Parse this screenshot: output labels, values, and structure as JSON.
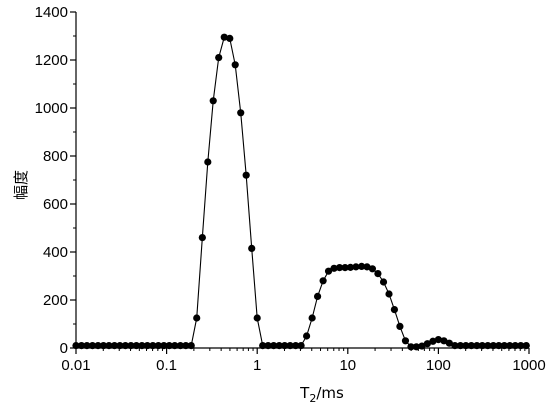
{
  "chart_data": {
    "type": "scatter",
    "title": "",
    "xlabel": "T",
    "xlabel_sub": "2",
    "xlabel_unit": "/ms",
    "ylabel": "幅度",
    "xscale": "log",
    "xlim": [
      0.01,
      1000
    ],
    "ylim": [
      0,
      1400
    ],
    "xticks": [
      0.01,
      0.1,
      1,
      10,
      100,
      1000
    ],
    "xtick_labels": [
      "0.01",
      "0.1",
      "1",
      "10",
      "100",
      "1000"
    ],
    "yticks": [
      0,
      200,
      400,
      600,
      800,
      1000,
      1200,
      1400
    ],
    "ytick_labels": [
      "0",
      "200",
      "400",
      "600",
      "800",
      "1000",
      "1200",
      "1400"
    ],
    "grid": false,
    "legend": "none",
    "marker_color": "#000000",
    "line_color": "#000000",
    "series": [
      {
        "marker": "filled-circle",
        "line": true,
        "x": [
          0.01,
          0.0115,
          0.0132,
          0.0152,
          0.0175,
          0.0201,
          0.0231,
          0.0266,
          0.0305,
          0.0351,
          0.0404,
          0.0464,
          0.0534,
          0.0613,
          0.0705,
          0.0811,
          0.0933,
          0.107,
          0.123,
          0.142,
          0.163,
          0.187,
          0.215,
          0.248,
          0.285,
          0.327,
          0.376,
          0.433,
          0.498,
          0.572,
          0.658,
          0.756,
          0.87,
          1.0,
          1.15,
          1.32,
          1.52,
          1.75,
          2.01,
          2.31,
          2.66,
          3.05,
          3.51,
          4.04,
          4.64,
          5.34,
          6.13,
          7.05,
          8.11,
          9.33,
          10.7,
          12.3,
          14.2,
          16.3,
          18.7,
          21.5,
          24.8,
          28.5,
          32.7,
          37.6,
          43.3,
          49.8,
          57.2,
          65.8,
          75.6,
          87.0,
          100,
          115,
          132,
          152,
          175,
          201,
          231,
          266,
          305,
          351,
          404,
          464,
          534,
          613,
          705,
          811,
          933
        ],
        "y": [
          10,
          10,
          10,
          10,
          10,
          10,
          10,
          10,
          10,
          10,
          10,
          10,
          10,
          10,
          10,
          10,
          10,
          10,
          10,
          10,
          10,
          10,
          125,
          460,
          775,
          1030,
          1210,
          1295,
          1290,
          1180,
          980,
          720,
          415,
          125,
          10,
          10,
          10,
          10,
          10,
          10,
          10,
          10,
          50,
          125,
          215,
          280,
          320,
          332,
          335,
          335,
          336,
          338,
          340,
          338,
          330,
          310,
          275,
          225,
          160,
          90,
          30,
          5,
          5,
          8,
          18,
          28,
          35,
          30,
          20,
          10,
          10,
          10,
          10,
          10,
          10,
          10,
          10,
          10,
          10,
          10,
          10,
          10,
          10
        ]
      }
    ]
  }
}
